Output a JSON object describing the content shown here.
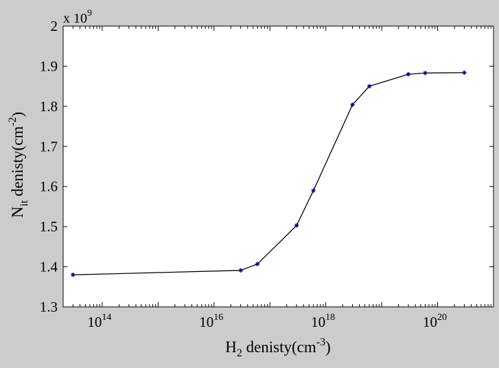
{
  "chart_data": {
    "type": "line",
    "title": "",
    "xlabel": {
      "base": "H",
      "sub": "2",
      "rest": " denisty(cm",
      "sup": "-3",
      "close": ")"
    },
    "ylabel": {
      "base": "N",
      "sub": "it",
      "rest": " denisty(cm",
      "sup": "-2",
      "close": ")"
    },
    "x_scale": "log",
    "xlim": [
      20000000000000.0,
      1e+21
    ],
    "ylim": [
      1300000000.0,
      2000000000.0
    ],
    "x_ticks": [
      {
        "value": 100000000000000.0,
        "base": "10",
        "exp": "14"
      },
      {
        "value": 1e+16,
        "base": "10",
        "exp": "16"
      },
      {
        "value": 1e+18,
        "base": "10",
        "exp": "18"
      },
      {
        "value": 1e+20,
        "base": "10",
        "exp": "20"
      }
    ],
    "y_ticks": [
      {
        "value": 1300000000.0,
        "label": "1.3"
      },
      {
        "value": 1400000000.0,
        "label": "1.4"
      },
      {
        "value": 1500000000.0,
        "label": "1.5"
      },
      {
        "value": 1600000000.0,
        "label": "1.6"
      },
      {
        "value": 1700000000.0,
        "label": "1.7"
      },
      {
        "value": 1800000000.0,
        "label": "1.8"
      },
      {
        "value": 1900000000.0,
        "label": "1.9"
      },
      {
        "value": 2000000000.0,
        "label": "2"
      }
    ],
    "y_multiplier": {
      "base": "x 10",
      "exp": "9"
    },
    "grid": false,
    "series": [
      {
        "line_color": "#000000",
        "marker_color": "#00008b",
        "marker": "star",
        "x": [
          30000000000000.0,
          3e+16,
          6e+16,
          3e+17,
          6e+17,
          3e+18,
          6e+18,
          3e+19,
          6e+19,
          3e+20
        ],
        "y": [
          1380000000.0,
          1391000000.0,
          1407000000.0,
          1503000000.0,
          1590000000.0,
          1804000000.0,
          1850000000.0,
          1880000000.0,
          1883000000.0,
          1884000000.0
        ]
      }
    ]
  }
}
